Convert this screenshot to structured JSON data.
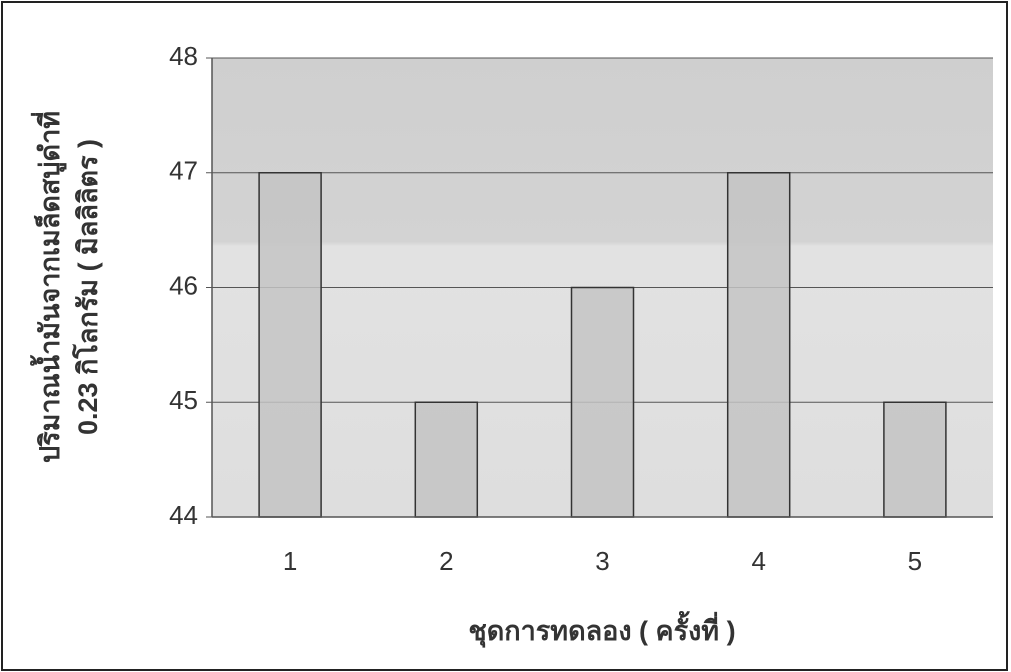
{
  "chart_data": {
    "type": "bar",
    "y_label": [
      "ปริมาณน้ำมันจากเมล็ดสบู่ดำที่",
      "0.23 กิโลกรัม ( มิลลิลิตร )"
    ],
    "x_label": "ชุดการทดลอง ( ครั้งที่ )",
    "categories": [
      "1",
      "2",
      "3",
      "4",
      "5"
    ],
    "values": [
      47,
      45,
      46,
      47,
      45
    ],
    "color": "#c4c4c4",
    "ylim": [
      44,
      48
    ],
    "yticks": [
      44,
      45,
      46,
      47,
      48
    ],
    "grid": true
  }
}
